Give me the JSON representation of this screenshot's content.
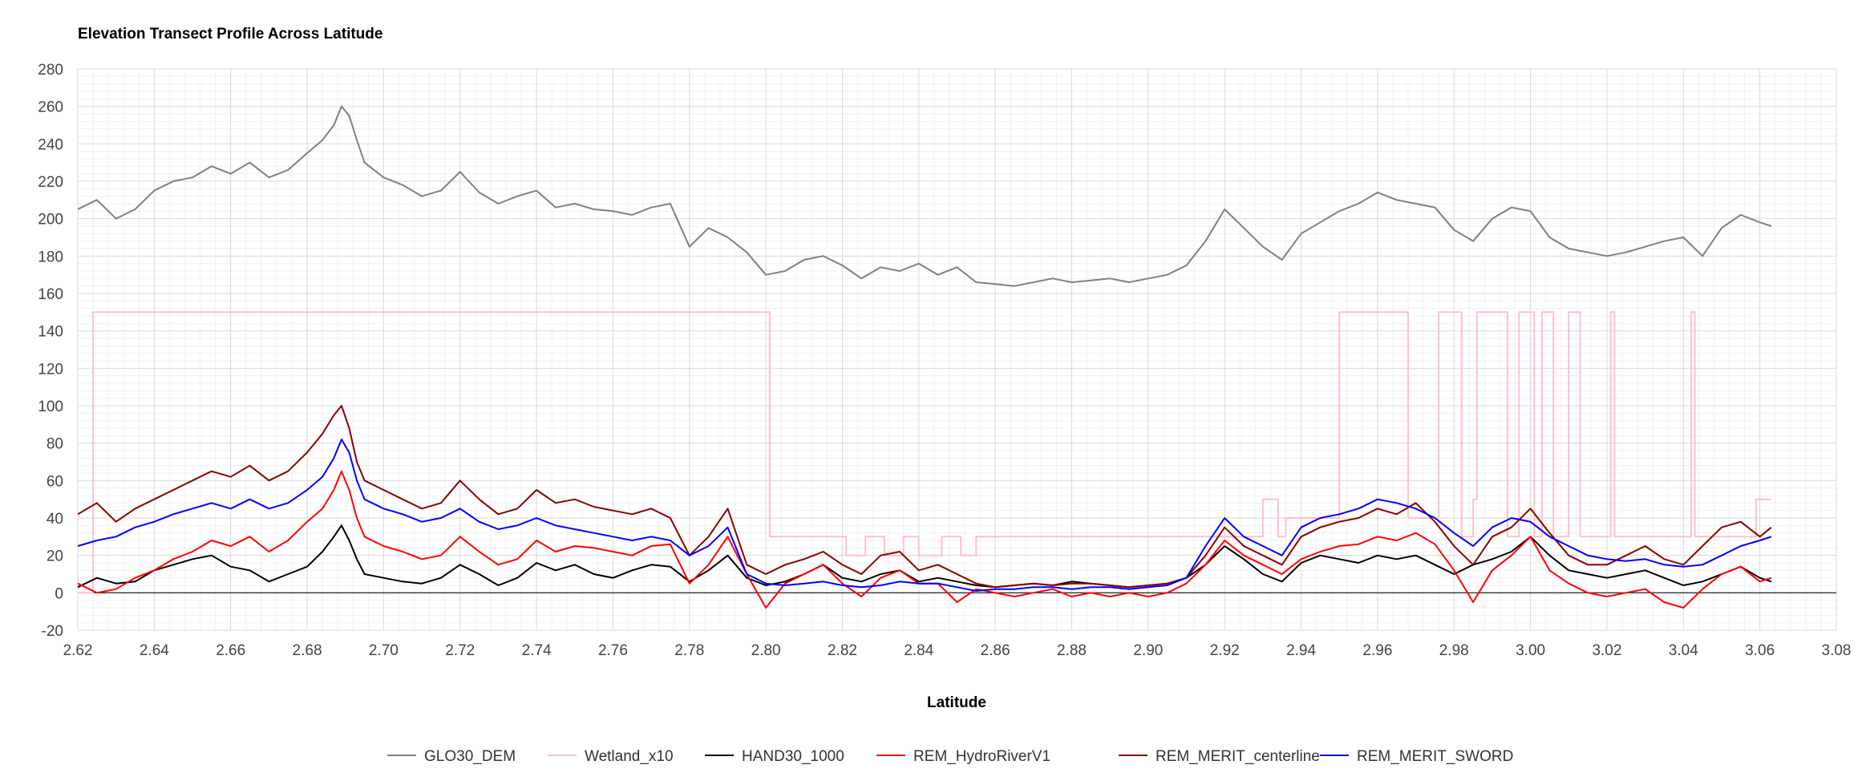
{
  "chart_data": {
    "type": "line",
    "title": "Elevation Transect Profile Across Latitude",
    "xlabel": "Latitude",
    "ylabel": "",
    "xlim": [
      2.62,
      3.08
    ],
    "ylim": [
      -20,
      280
    ],
    "x_ticks": [
      "2.62",
      "2.64",
      "2.66",
      "2.68",
      "2.70",
      "2.72",
      "2.74",
      "2.76",
      "2.78",
      "2.80",
      "2.82",
      "2.84",
      "2.86",
      "2.88",
      "2.90",
      "2.92",
      "2.94",
      "2.96",
      "2.98",
      "3.00",
      "3.02",
      "3.04",
      "3.06",
      "3.08"
    ],
    "y_ticks": [
      "280",
      "260",
      "240",
      "220",
      "200",
      "180",
      "160",
      "140",
      "120",
      "100",
      "80",
      "60",
      "40",
      "20",
      "0",
      "-20"
    ],
    "grid": true,
    "legend_position": "bottom",
    "series": [
      {
        "name": "GLO30_DEM",
        "color": "#808080",
        "x": [
          2.62,
          2.625,
          2.63,
          2.635,
          2.64,
          2.645,
          2.65,
          2.655,
          2.66,
          2.665,
          2.67,
          2.675,
          2.68,
          2.684,
          2.687,
          2.689,
          2.691,
          2.693,
          2.695,
          2.7,
          2.705,
          2.71,
          2.715,
          2.72,
          2.725,
          2.73,
          2.735,
          2.74,
          2.745,
          2.75,
          2.755,
          2.76,
          2.765,
          2.77,
          2.775,
          2.78,
          2.785,
          2.79,
          2.795,
          2.8,
          2.805,
          2.81,
          2.815,
          2.82,
          2.825,
          2.83,
          2.835,
          2.84,
          2.845,
          2.85,
          2.855,
          2.86,
          2.865,
          2.87,
          2.875,
          2.88,
          2.885,
          2.89,
          2.895,
          2.9,
          2.905,
          2.91,
          2.915,
          2.92,
          2.925,
          2.93,
          2.935,
          2.94,
          2.945,
          2.95,
          2.955,
          2.96,
          2.965,
          2.97,
          2.975,
          2.98,
          2.985,
          2.99,
          2.995,
          3.0,
          3.005,
          3.01,
          3.015,
          3.02,
          3.025,
          3.03,
          3.035,
          3.04,
          3.045,
          3.05,
          3.055,
          3.06,
          3.063
        ],
        "y": [
          205,
          210,
          200,
          205,
          215,
          220,
          222,
          228,
          224,
          230,
          222,
          226,
          235,
          242,
          250,
          260,
          255,
          242,
          230,
          222,
          218,
          212,
          215,
          225,
          214,
          208,
          212,
          215,
          206,
          208,
          205,
          204,
          202,
          206,
          208,
          185,
          195,
          190,
          182,
          170,
          172,
          178,
          180,
          175,
          168,
          174,
          172,
          176,
          170,
          174,
          166,
          165,
          164,
          166,
          168,
          166,
          167,
          168,
          166,
          168,
          170,
          175,
          188,
          205,
          195,
          185,
          178,
          192,
          198,
          204,
          208,
          214,
          210,
          208,
          206,
          194,
          188,
          200,
          206,
          204,
          190,
          184,
          182,
          180,
          182,
          185,
          188,
          190,
          180,
          195,
          202,
          198,
          196
        ]
      },
      {
        "name": "Wetland_x10",
        "color": "#ffc0cb",
        "x": [
          2.62,
          2.624,
          2.624,
          2.801,
          2.801,
          2.821,
          2.821,
          2.826,
          2.826,
          2.831,
          2.831,
          2.836,
          2.836,
          2.84,
          2.84,
          2.846,
          2.846,
          2.851,
          2.851,
          2.855,
          2.855,
          2.9,
          2.9,
          2.93,
          2.93,
          2.934,
          2.934,
          2.936,
          2.936,
          2.95,
          2.95,
          2.968,
          2.968,
          2.976,
          2.976,
          2.982,
          2.982,
          2.985,
          2.985,
          2.986,
          2.986,
          2.994,
          2.994,
          2.997,
          2.997,
          3.001,
          3.001,
          3.003,
          3.003,
          3.006,
          3.006,
          3.01,
          3.01,
          3.013,
          3.013,
          3.021,
          3.021,
          3.022,
          3.022,
          3.042,
          3.042,
          3.043,
          3.043,
          3.059,
          3.059,
          3.063
        ],
        "y": [
          0,
          0,
          150,
          150,
          30,
          30,
          20,
          20,
          30,
          30,
          20,
          20,
          30,
          30,
          20,
          20,
          30,
          30,
          20,
          20,
          30,
          30,
          30,
          30,
          50,
          50,
          30,
          30,
          40,
          40,
          150,
          150,
          40,
          40,
          150,
          150,
          30,
          30,
          50,
          50,
          150,
          150,
          30,
          30,
          150,
          150,
          30,
          30,
          150,
          150,
          30,
          30,
          150,
          150,
          30,
          30,
          150,
          150,
          30,
          30,
          150,
          150,
          30,
          30,
          50,
          50
        ]
      },
      {
        "name": "HAND30_1000",
        "color": "#000000",
        "x": [
          2.62,
          2.625,
          2.63,
          2.635,
          2.64,
          2.645,
          2.65,
          2.655,
          2.66,
          2.665,
          2.67,
          2.675,
          2.68,
          2.684,
          2.687,
          2.689,
          2.691,
          2.693,
          2.695,
          2.7,
          2.705,
          2.71,
          2.715,
          2.72,
          2.725,
          2.73,
          2.735,
          2.74,
          2.745,
          2.75,
          2.755,
          2.76,
          2.765,
          2.77,
          2.775,
          2.78,
          2.785,
          2.79,
          2.795,
          2.8,
          2.805,
          2.81,
          2.815,
          2.82,
          2.825,
          2.83,
          2.835,
          2.84,
          2.845,
          2.85,
          2.855,
          2.86,
          2.865,
          2.87,
          2.875,
          2.88,
          2.885,
          2.89,
          2.895,
          2.9,
          2.905,
          2.91,
          2.915,
          2.92,
          2.925,
          2.93,
          2.935,
          2.94,
          2.945,
          2.95,
          2.955,
          2.96,
          2.965,
          2.97,
          2.975,
          2.98,
          2.985,
          2.99,
          2.995,
          3.0,
          3.005,
          3.01,
          3.015,
          3.02,
          3.025,
          3.03,
          3.035,
          3.04,
          3.045,
          3.05,
          3.055,
          3.06,
          3.063
        ],
        "y": [
          3,
          8,
          5,
          6,
          12,
          15,
          18,
          20,
          14,
          12,
          6,
          10,
          14,
          22,
          30,
          36,
          28,
          18,
          10,
          8,
          6,
          5,
          8,
          15,
          10,
          4,
          8,
          16,
          12,
          15,
          10,
          8,
          12,
          15,
          14,
          6,
          12,
          20,
          8,
          4,
          6,
          10,
          15,
          8,
          6,
          10,
          12,
          6,
          8,
          6,
          4,
          3,
          4,
          5,
          4,
          6,
          5,
          4,
          3,
          4,
          5,
          8,
          15,
          25,
          18,
          10,
          6,
          16,
          20,
          18,
          16,
          20,
          18,
          20,
          15,
          10,
          15,
          18,
          22,
          30,
          20,
          12,
          10,
          8,
          10,
          12,
          8,
          4,
          6,
          10,
          14,
          8,
          6
        ]
      },
      {
        "name": "REM_HydroRiverV1",
        "color": "#ff0000",
        "x": [
          2.62,
          2.625,
          2.63,
          2.635,
          2.64,
          2.645,
          2.65,
          2.655,
          2.66,
          2.665,
          2.67,
          2.675,
          2.68,
          2.684,
          2.687,
          2.689,
          2.691,
          2.693,
          2.695,
          2.7,
          2.705,
          2.71,
          2.715,
          2.72,
          2.725,
          2.73,
          2.735,
          2.74,
          2.745,
          2.75,
          2.755,
          2.76,
          2.765,
          2.77,
          2.775,
          2.78,
          2.785,
          2.79,
          2.795,
          2.8,
          2.805,
          2.81,
          2.815,
          2.82,
          2.825,
          2.83,
          2.835,
          2.84,
          2.845,
          2.85,
          2.855,
          2.86,
          2.865,
          2.87,
          2.875,
          2.88,
          2.885,
          2.89,
          2.895,
          2.9,
          2.905,
          2.91,
          2.915,
          2.92,
          2.925,
          2.93,
          2.935,
          2.94,
          2.945,
          2.95,
          2.955,
          2.96,
          2.965,
          2.97,
          2.975,
          2.98,
          2.985,
          2.99,
          2.995,
          3.0,
          3.005,
          3.01,
          3.015,
          3.02,
          3.025,
          3.03,
          3.035,
          3.04,
          3.045,
          3.05,
          3.055,
          3.06,
          3.063
        ],
        "y": [
          5,
          0,
          2,
          8,
          12,
          18,
          22,
          28,
          25,
          30,
          22,
          28,
          38,
          45,
          55,
          65,
          55,
          40,
          30,
          25,
          22,
          18,
          20,
          30,
          22,
          15,
          18,
          28,
          22,
          25,
          24,
          22,
          20,
          25,
          26,
          5,
          15,
          30,
          10,
          -8,
          5,
          10,
          15,
          5,
          -2,
          8,
          12,
          5,
          5,
          -5,
          2,
          0,
          -2,
          0,
          2,
          -2,
          0,
          -2,
          0,
          -2,
          0,
          5,
          15,
          28,
          20,
          15,
          10,
          18,
          22,
          25,
          26,
          30,
          28,
          32,
          26,
          12,
          -5,
          12,
          20,
          30,
          12,
          5,
          0,
          -2,
          0,
          2,
          -5,
          -8,
          2,
          10,
          14,
          6,
          8
        ]
      },
      {
        "name": "REM_MERIT_centerline",
        "color": "#8b0000",
        "x": [
          2.62,
          2.625,
          2.63,
          2.635,
          2.64,
          2.645,
          2.65,
          2.655,
          2.66,
          2.665,
          2.67,
          2.675,
          2.68,
          2.684,
          2.687,
          2.689,
          2.691,
          2.693,
          2.695,
          2.7,
          2.705,
          2.71,
          2.715,
          2.72,
          2.725,
          2.73,
          2.735,
          2.74,
          2.745,
          2.75,
          2.755,
          2.76,
          2.765,
          2.77,
          2.775,
          2.78,
          2.785,
          2.79,
          2.795,
          2.8,
          2.805,
          2.81,
          2.815,
          2.82,
          2.825,
          2.83,
          2.835,
          2.84,
          2.845,
          2.85,
          2.855,
          2.86,
          2.865,
          2.87,
          2.875,
          2.88,
          2.885,
          2.89,
          2.895,
          2.9,
          2.905,
          2.91,
          2.915,
          2.92,
          2.925,
          2.93,
          2.935,
          2.94,
          2.945,
          2.95,
          2.955,
          2.96,
          2.965,
          2.97,
          2.975,
          2.98,
          2.985,
          2.99,
          2.995,
          3.0,
          3.005,
          3.01,
          3.015,
          3.02,
          3.025,
          3.03,
          3.035,
          3.04,
          3.045,
          3.05,
          3.055,
          3.06,
          3.063
        ],
        "y": [
          42,
          48,
          38,
          45,
          50,
          55,
          60,
          65,
          62,
          68,
          60,
          65,
          75,
          85,
          95,
          100,
          88,
          70,
          60,
          55,
          50,
          45,
          48,
          60,
          50,
          42,
          45,
          55,
          48,
          50,
          46,
          44,
          42,
          45,
          40,
          20,
          30,
          45,
          15,
          10,
          15,
          18,
          22,
          15,
          10,
          20,
          22,
          12,
          15,
          10,
          5,
          3,
          4,
          5,
          4,
          5,
          5,
          4,
          3,
          4,
          5,
          8,
          20,
          35,
          25,
          20,
          15,
          30,
          35,
          38,
          40,
          45,
          42,
          48,
          38,
          25,
          15,
          30,
          35,
          45,
          32,
          20,
          15,
          15,
          20,
          25,
          18,
          15,
          25,
          35,
          38,
          30,
          35
        ]
      },
      {
        "name": "REM_MERIT_SWORD",
        "color": "#0000ff",
        "x": [
          2.62,
          2.625,
          2.63,
          2.635,
          2.64,
          2.645,
          2.65,
          2.655,
          2.66,
          2.665,
          2.67,
          2.675,
          2.68,
          2.684,
          2.687,
          2.689,
          2.691,
          2.693,
          2.695,
          2.7,
          2.705,
          2.71,
          2.715,
          2.72,
          2.725,
          2.73,
          2.735,
          2.74,
          2.745,
          2.75,
          2.755,
          2.76,
          2.765,
          2.77,
          2.775,
          2.78,
          2.785,
          2.79,
          2.795,
          2.8,
          2.805,
          2.81,
          2.815,
          2.82,
          2.825,
          2.83,
          2.835,
          2.84,
          2.845,
          2.85,
          2.855,
          2.86,
          2.865,
          2.87,
          2.875,
          2.88,
          2.885,
          2.89,
          2.895,
          2.9,
          2.905,
          2.91,
          2.915,
          2.92,
          2.925,
          2.93,
          2.935,
          2.94,
          2.945,
          2.95,
          2.955,
          2.96,
          2.965,
          2.97,
          2.975,
          2.98,
          2.985,
          2.99,
          2.995,
          3.0,
          3.005,
          3.01,
          3.015,
          3.02,
          3.025,
          3.03,
          3.035,
          3.04,
          3.045,
          3.05,
          3.055,
          3.06,
          3.063
        ],
        "y": [
          25,
          28,
          30,
          35,
          38,
          42,
          45,
          48,
          45,
          50,
          45,
          48,
          55,
          62,
          72,
          82,
          75,
          60,
          50,
          45,
          42,
          38,
          40,
          45,
          38,
          34,
          36,
          40,
          36,
          34,
          32,
          30,
          28,
          30,
          28,
          20,
          25,
          35,
          10,
          5,
          4,
          5,
          6,
          4,
          3,
          4,
          6,
          5,
          5,
          3,
          1,
          2,
          2,
          3,
          3,
          2,
          3,
          3,
          2,
          3,
          4,
          8,
          25,
          40,
          30,
          25,
          20,
          35,
          40,
          42,
          45,
          50,
          48,
          45,
          40,
          32,
          25,
          35,
          40,
          38,
          30,
          25,
          20,
          18,
          17,
          18,
          15,
          14,
          15,
          20,
          25,
          28,
          30
        ]
      }
    ]
  }
}
